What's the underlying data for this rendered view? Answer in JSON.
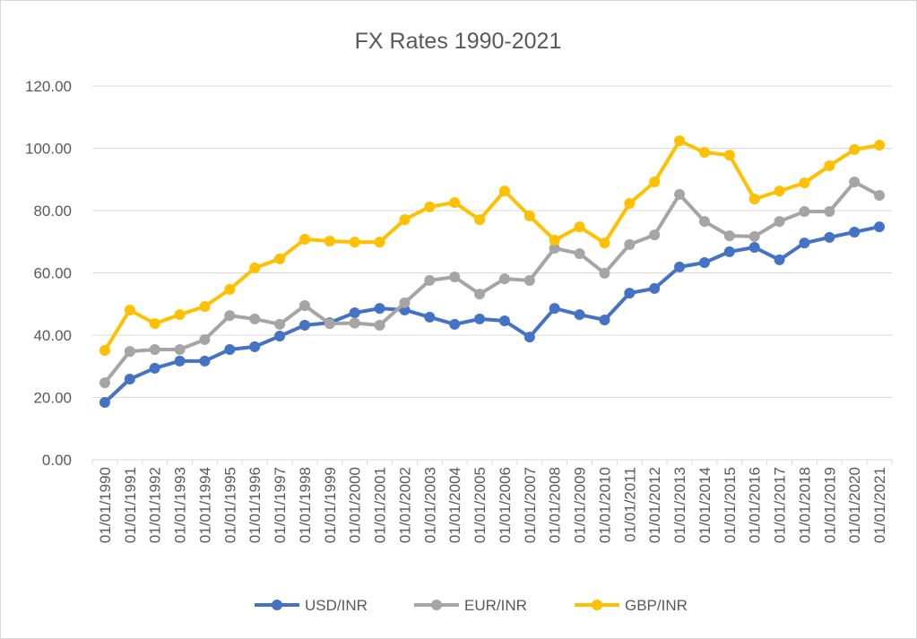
{
  "chart_data": {
    "type": "line",
    "title": "FX Rates 1990-2021",
    "xlabel": "",
    "ylabel": "",
    "ylim": [
      0,
      120
    ],
    "yticks": [
      "0.00",
      "20.00",
      "40.00",
      "60.00",
      "80.00",
      "100.00",
      "120.00"
    ],
    "grid": true,
    "legend_position": "bottom",
    "categories": [
      "01/01/1990",
      "01/01/1991",
      "01/01/1992",
      "01/01/1993",
      "01/01/1994",
      "01/01/1995",
      "01/01/1996",
      "01/01/1997",
      "01/01/1998",
      "01/01/1999",
      "01/01/2000",
      "01/01/2001",
      "01/01/2002",
      "01/01/2003",
      "01/01/2004",
      "01/01/2005",
      "01/01/2006",
      "01/01/2007",
      "01/01/2008",
      "01/01/2009",
      "01/01/2010",
      "01/01/2011",
      "01/01/2012",
      "01/01/2013",
      "01/01/2014",
      "01/01/2015",
      "01/01/2016",
      "01/01/2017",
      "01/01/2018",
      "01/01/2019",
      "01/01/2020",
      "01/01/2021"
    ],
    "series": [
      {
        "name": "USD/INR",
        "color": "#4472C4",
        "values": [
          18.4,
          25.9,
          29.4,
          31.7,
          31.7,
          35.4,
          36.3,
          39.7,
          43.2,
          44.0,
          47.2,
          48.6,
          48.1,
          45.8,
          43.5,
          45.2,
          44.6,
          39.4,
          48.6,
          46.6,
          44.9,
          53.5,
          55.0,
          61.9,
          63.3,
          66.8,
          68.2,
          64.2,
          69.6,
          71.4,
          73.1,
          74.8
        ]
      },
      {
        "name": "EUR/INR",
        "color": "#A5A5A5",
        "values": [
          24.7,
          34.8,
          35.4,
          35.4,
          38.6,
          46.3,
          45.2,
          43.5,
          49.5,
          43.7,
          43.9,
          43.2,
          50.4,
          57.6,
          58.7,
          53.2,
          58.1,
          57.6,
          67.9,
          66.2,
          59.9,
          69.1,
          72.2,
          85.2,
          76.5,
          71.9,
          71.7,
          76.5,
          79.7,
          79.7,
          89.2,
          84.9
        ]
      },
      {
        "name": "GBP/INR",
        "color": "#FFC000",
        "values": [
          35.1,
          48.1,
          43.7,
          46.6,
          49.2,
          54.7,
          61.6,
          64.5,
          70.8,
          70.2,
          69.9,
          69.9,
          77.1,
          81.2,
          82.6,
          77.1,
          86.3,
          78.3,
          70.5,
          74.8,
          69.6,
          82.3,
          89.2,
          102.4,
          98.7,
          97.8,
          83.7,
          86.3,
          88.9,
          94.4,
          99.6,
          101.0
        ]
      }
    ]
  }
}
